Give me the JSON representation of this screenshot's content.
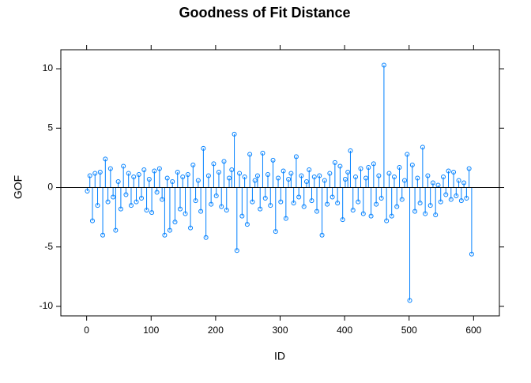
{
  "chart_data": {
    "type": "spike",
    "title": "Goodness of Fit Distance",
    "xlabel": "ID",
    "ylabel": "GOF",
    "color": "#0080ff",
    "hline": 0,
    "xlim": [
      -40,
      640
    ],
    "ylim": [
      -10.8,
      11.6
    ],
    "xticks": [
      0,
      100,
      200,
      300,
      400,
      500,
      600
    ],
    "yticks": [
      -10,
      -5,
      0,
      5,
      10
    ],
    "x": [
      1,
      5,
      9,
      13,
      17,
      21,
      25,
      29,
      33,
      37,
      41,
      45,
      49,
      53,
      57,
      61,
      65,
      69,
      73,
      77,
      81,
      85,
      89,
      93,
      97,
      101,
      105,
      109,
      113,
      117,
      121,
      125,
      129,
      133,
      137,
      141,
      145,
      149,
      153,
      157,
      161,
      165,
      169,
      173,
      177,
      181,
      185,
      189,
      193,
      197,
      201,
      205,
      209,
      213,
      217,
      221,
      225,
      229,
      233,
      237,
      241,
      245,
      249,
      253,
      257,
      261,
      265,
      269,
      273,
      277,
      281,
      285,
      289,
      293,
      297,
      301,
      305,
      309,
      313,
      317,
      321,
      325,
      329,
      333,
      337,
      341,
      345,
      349,
      353,
      357,
      361,
      365,
      369,
      373,
      377,
      381,
      385,
      389,
      393,
      397,
      401,
      405,
      409,
      413,
      417,
      421,
      425,
      429,
      433,
      437,
      441,
      445,
      449,
      453,
      457,
      461,
      465,
      469,
      473,
      477,
      481,
      485,
      489,
      493,
      497,
      501,
      505,
      509,
      513,
      517,
      521,
      525,
      529,
      533,
      537,
      541,
      545,
      549,
      553,
      557,
      561,
      565,
      569,
      573,
      577,
      581,
      585,
      589,
      593,
      597
    ],
    "values": [
      -0.3,
      1.0,
      -2.8,
      1.2,
      -1.5,
      1.3,
      -4.0,
      2.4,
      -1.2,
      1.6,
      -0.8,
      -3.6,
      0.5,
      -1.8,
      1.8,
      -0.6,
      1.2,
      -1.5,
      0.9,
      -1.2,
      1.1,
      -0.9,
      1.5,
      -1.9,
      0.7,
      -2.1,
      1.4,
      -0.4,
      1.6,
      -1.0,
      -4.0,
      0.8,
      -3.6,
      0.5,
      -2.9,
      1.3,
      -1.8,
      0.9,
      -2.2,
      1.1,
      -3.4,
      1.9,
      -1.1,
      0.6,
      -2.0,
      3.3,
      -4.2,
      1.0,
      -1.4,
      2.0,
      -0.7,
      1.3,
      -1.6,
      2.2,
      -1.9,
      0.8,
      1.5,
      4.5,
      -5.3,
      1.2,
      -2.4,
      0.9,
      -3.1,
      2.8,
      -1.2,
      0.6,
      1.0,
      -1.8,
      2.9,
      -0.9,
      1.1,
      -1.5,
      2.3,
      -3.7,
      0.8,
      -1.2,
      1.4,
      -2.6,
      0.7,
      1.2,
      -1.3,
      2.6,
      -0.8,
      1.0,
      -1.6,
      0.5,
      1.5,
      -1.1,
      0.9,
      -2.0,
      1.0,
      -4.0,
      0.6,
      -1.4,
      1.2,
      -0.8,
      2.1,
      -1.3,
      1.8,
      -2.7,
      0.7,
      1.3,
      3.1,
      -1.9,
      0.9,
      -1.2,
      1.6,
      -2.2,
      0.8,
      1.7,
      -2.4,
      2.0,
      -1.4,
      1.0,
      -0.9,
      10.3,
      -2.8,
      1.2,
      -2.4,
      0.9,
      -1.6,
      1.7,
      -1.0,
      0.6,
      2.8,
      -9.5,
      1.9,
      -2.0,
      0.8,
      -1.3,
      3.4,
      -2.2,
      1.0,
      -1.5,
      0.4,
      -2.3,
      0.2,
      -1.2,
      0.9,
      -0.6,
      1.4,
      -1.0,
      1.3,
      -0.7,
      0.6,
      -1.1,
      0.4,
      -0.9,
      1.6,
      -5.6
    ]
  }
}
